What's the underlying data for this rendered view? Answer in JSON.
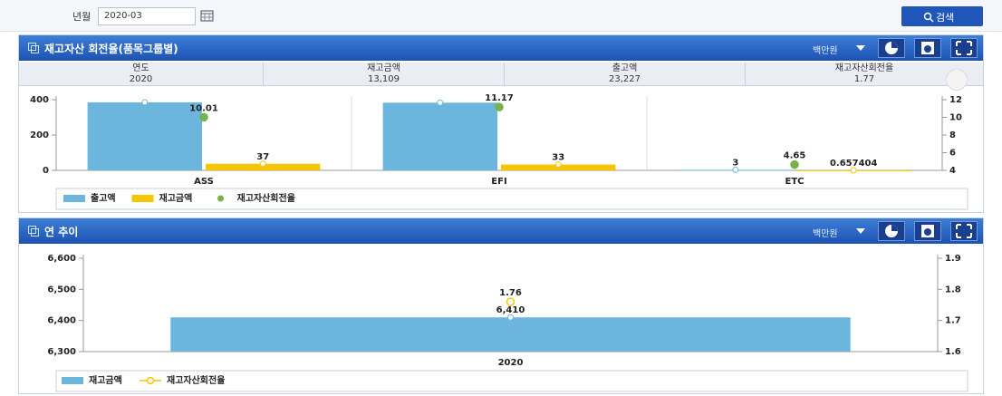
{
  "search": {
    "label": "년월",
    "value": "2020-03",
    "button": "검색"
  },
  "panels": [
    {
      "title": "재고자산 회전율(품목그룹별)",
      "unit": "백만원",
      "summary": [
        {
          "label": "연도",
          "value": "2020"
        },
        {
          "label": "재고금액",
          "value": "13,109"
        },
        {
          "label": "출고액",
          "value": "23,227"
        },
        {
          "label": "재고자산회전율",
          "value": "1.77"
        }
      ]
    },
    {
      "title": "연 추이",
      "unit": "백만원"
    }
  ],
  "chart_data": [
    {
      "type": "bar",
      "categories": [
        "ASS",
        "EFI",
        "ETC"
      ],
      "series": [
        {
          "name": "출고액",
          "type": "bar",
          "color": "#6cb6dd",
          "values": [
            385,
            383,
            3
          ],
          "value_labels": [
            null,
            null,
            "3"
          ]
        },
        {
          "name": "재고금액",
          "type": "bar",
          "color": "#f7c600",
          "values": [
            37,
            33,
            0.657404
          ]
        },
        {
          "name": "재고자산회전율",
          "type": "scatter",
          "axis": "y2",
          "marker": "filled",
          "color": "#77b347",
          "values": [
            10.01,
            11.17,
            4.65
          ]
        }
      ],
      "ylim": [
        0,
        400
      ],
      "yticks": [
        0,
        200,
        400
      ],
      "y2lim": [
        4,
        12
      ],
      "y2ticks": [
        4,
        6,
        8,
        10,
        12
      ]
    },
    {
      "type": "bar",
      "categories": [
        "2020"
      ],
      "series": [
        {
          "name": "재고금액",
          "type": "bar",
          "color": "#6cb6dd",
          "values": [
            6410
          ],
          "value_labels": [
            "6,410"
          ]
        },
        {
          "name": "재고자산회전율",
          "type": "line",
          "axis": "y2",
          "marker": "hollow",
          "color": "#f7c600",
          "values": [
            1.76
          ]
        }
      ],
      "ylim": [
        6300,
        6600
      ],
      "yticks": [
        {
          "value": 6300,
          "label": "6,300"
        },
        {
          "value": 6400,
          "label": "6,400"
        },
        {
          "value": 6500,
          "label": "6,500"
        },
        {
          "value": 6600,
          "label": "6,600"
        }
      ],
      "y2lim": [
        1.6,
        1.9
      ],
      "y2ticks": [
        1.6,
        1.7,
        1.8,
        1.9
      ]
    }
  ]
}
